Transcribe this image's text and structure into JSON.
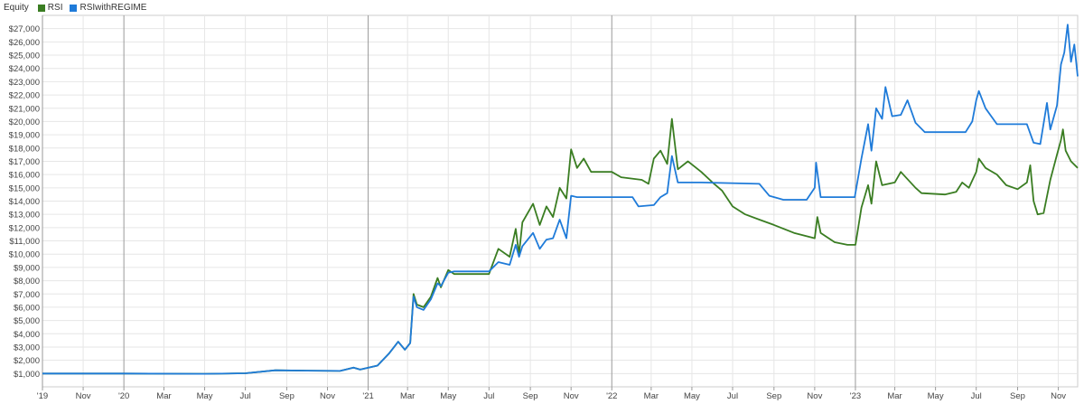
{
  "legend": {
    "title": "Equity"
  },
  "chart_data": {
    "type": "line",
    "title": "Equity",
    "xlabel": "",
    "ylabel": "",
    "ylim": [
      0,
      28000
    ],
    "grid": true,
    "legend_position": "top-left",
    "y_ticks": [
      1000,
      2000,
      3000,
      4000,
      5000,
      6000,
      7000,
      8000,
      9000,
      10000,
      11000,
      12000,
      13000,
      14000,
      15000,
      16000,
      17000,
      18000,
      19000,
      20000,
      21000,
      22000,
      23000,
      24000,
      25000,
      26000,
      27000
    ],
    "y_tick_labels": [
      "$1,000",
      "$2,000",
      "$3,000",
      "$4,000",
      "$5,000",
      "$6,000",
      "$7,000",
      "$8,000",
      "$9,000",
      "$10,000",
      "$11,000",
      "$12,000",
      "$13,000",
      "$14,000",
      "$15,000",
      "$16,000",
      "$17,000",
      "$18,000",
      "$19,000",
      "$20,000",
      "$21,000",
      "$22,000",
      "$23,000",
      "$24,000",
      "$25,000",
      "$26,000",
      "$27,000"
    ],
    "x_range": [
      "2019-09-01",
      "2023-11-30"
    ],
    "x_ticks": [
      {
        "date": "2019-09-01",
        "label": "'19",
        "major": true
      },
      {
        "date": "2019-11-01",
        "label": "Nov",
        "major": false
      },
      {
        "date": "2020-01-01",
        "label": "'20",
        "major": true
      },
      {
        "date": "2020-03-01",
        "label": "Mar",
        "major": false
      },
      {
        "date": "2020-05-01",
        "label": "May",
        "major": false
      },
      {
        "date": "2020-07-01",
        "label": "Jul",
        "major": false
      },
      {
        "date": "2020-09-01",
        "label": "Sep",
        "major": false
      },
      {
        "date": "2020-11-01",
        "label": "Nov",
        "major": false
      },
      {
        "date": "2021-01-01",
        "label": "'21",
        "major": true
      },
      {
        "date": "2021-03-01",
        "label": "Mar",
        "major": false
      },
      {
        "date": "2021-05-01",
        "label": "May",
        "major": false
      },
      {
        "date": "2021-07-01",
        "label": "Jul",
        "major": false
      },
      {
        "date": "2021-09-01",
        "label": "Sep",
        "major": false
      },
      {
        "date": "2021-11-01",
        "label": "Nov",
        "major": false
      },
      {
        "date": "2022-01-01",
        "label": "'22",
        "major": true
      },
      {
        "date": "2022-03-01",
        "label": "Mar",
        "major": false
      },
      {
        "date": "2022-05-01",
        "label": "May",
        "major": false
      },
      {
        "date": "2022-07-01",
        "label": "Jul",
        "major": false
      },
      {
        "date": "2022-09-01",
        "label": "Sep",
        "major": false
      },
      {
        "date": "2022-11-01",
        "label": "Nov",
        "major": false
      },
      {
        "date": "2023-01-01",
        "label": "'23",
        "major": true
      },
      {
        "date": "2023-03-01",
        "label": "Mar",
        "major": false
      },
      {
        "date": "2023-05-01",
        "label": "May",
        "major": false
      },
      {
        "date": "2023-07-01",
        "label": "Jul",
        "major": false
      },
      {
        "date": "2023-09-01",
        "label": "Sep",
        "major": false
      },
      {
        "date": "2023-11-01",
        "label": "Nov",
        "major": false
      }
    ],
    "series": [
      {
        "name": "RSI",
        "color": "#3a7d22",
        "points": [
          [
            "2019-09-01",
            1000
          ],
          [
            "2020-01-01",
            1000
          ],
          [
            "2020-05-01",
            980
          ],
          [
            "2020-07-01",
            1020
          ],
          [
            "2020-08-15",
            1250
          ],
          [
            "2020-10-01",
            1220
          ],
          [
            "2020-11-20",
            1200
          ],
          [
            "2020-12-10",
            1450
          ],
          [
            "2020-12-20",
            1300
          ],
          [
            "2021-01-15",
            1600
          ],
          [
            "2021-02-01",
            2500
          ],
          [
            "2021-02-15",
            3400
          ],
          [
            "2021-02-25",
            2800
          ],
          [
            "2021-03-05",
            3300
          ],
          [
            "2021-03-10",
            7000
          ],
          [
            "2021-03-15",
            6200
          ],
          [
            "2021-03-25",
            6000
          ],
          [
            "2021-04-05",
            6800
          ],
          [
            "2021-04-15",
            8200
          ],
          [
            "2021-04-20",
            7500
          ],
          [
            "2021-05-01",
            8800
          ],
          [
            "2021-05-10",
            8500
          ],
          [
            "2021-07-01",
            8500
          ],
          [
            "2021-07-15",
            10400
          ],
          [
            "2021-08-01",
            9800
          ],
          [
            "2021-08-10",
            11900
          ],
          [
            "2021-08-15",
            10000
          ],
          [
            "2021-08-20",
            12400
          ],
          [
            "2021-09-05",
            13800
          ],
          [
            "2021-09-15",
            12200
          ],
          [
            "2021-09-25",
            13600
          ],
          [
            "2021-10-05",
            12800
          ],
          [
            "2021-10-15",
            15000
          ],
          [
            "2021-10-25",
            14200
          ],
          [
            "2021-11-01",
            17900
          ],
          [
            "2021-11-10",
            16500
          ],
          [
            "2021-11-20",
            17200
          ],
          [
            "2021-12-01",
            16200
          ],
          [
            "2022-01-01",
            16200
          ],
          [
            "2022-01-15",
            15800
          ],
          [
            "2022-02-15",
            15600
          ],
          [
            "2022-02-25",
            15300
          ],
          [
            "2022-03-05",
            17200
          ],
          [
            "2022-03-15",
            17800
          ],
          [
            "2022-03-25",
            16800
          ],
          [
            "2022-04-01",
            20200
          ],
          [
            "2022-04-10",
            16400
          ],
          [
            "2022-04-25",
            17000
          ],
          [
            "2022-05-15",
            16200
          ],
          [
            "2022-06-01",
            15400
          ],
          [
            "2022-06-15",
            14800
          ],
          [
            "2022-07-01",
            13600
          ],
          [
            "2022-07-20",
            13000
          ],
          [
            "2022-08-10",
            12600
          ],
          [
            "2022-09-01",
            12200
          ],
          [
            "2022-10-01",
            11600
          ],
          [
            "2022-11-01",
            11200
          ],
          [
            "2022-11-05",
            12800
          ],
          [
            "2022-11-10",
            11600
          ],
          [
            "2022-12-01",
            10900
          ],
          [
            "2022-12-20",
            10700
          ],
          [
            "2023-01-01",
            10700
          ],
          [
            "2023-01-10",
            13500
          ],
          [
            "2023-01-20",
            15200
          ],
          [
            "2023-01-25",
            13800
          ],
          [
            "2023-02-01",
            17000
          ],
          [
            "2023-02-10",
            15200
          ],
          [
            "2023-03-01",
            15400
          ],
          [
            "2023-03-10",
            16200
          ],
          [
            "2023-04-01",
            15000
          ],
          [
            "2023-04-10",
            14600
          ],
          [
            "2023-05-15",
            14500
          ],
          [
            "2023-06-01",
            14700
          ],
          [
            "2023-06-10",
            15400
          ],
          [
            "2023-06-20",
            15000
          ],
          [
            "2023-07-01",
            16200
          ],
          [
            "2023-07-05",
            17200
          ],
          [
            "2023-07-15",
            16500
          ],
          [
            "2023-08-01",
            16000
          ],
          [
            "2023-08-15",
            15200
          ],
          [
            "2023-09-01",
            14900
          ],
          [
            "2023-09-15",
            15400
          ],
          [
            "2023-09-20",
            16700
          ],
          [
            "2023-09-25",
            14000
          ],
          [
            "2023-10-01",
            13000
          ],
          [
            "2023-10-10",
            13100
          ],
          [
            "2023-10-20",
            15600
          ],
          [
            "2023-10-30",
            17500
          ],
          [
            "2023-11-05",
            18600
          ],
          [
            "2023-11-08",
            19400
          ],
          [
            "2023-11-12",
            17800
          ],
          [
            "2023-11-20",
            17000
          ],
          [
            "2023-11-30",
            16500
          ]
        ]
      },
      {
        "name": "RSIwithREGIME",
        "color": "#1f7bd9",
        "points": [
          [
            "2019-09-01",
            1000
          ],
          [
            "2020-01-01",
            1000
          ],
          [
            "2020-05-01",
            980
          ],
          [
            "2020-07-01",
            1020
          ],
          [
            "2020-08-15",
            1250
          ],
          [
            "2020-10-01",
            1220
          ],
          [
            "2020-11-20",
            1200
          ],
          [
            "2020-12-10",
            1450
          ],
          [
            "2020-12-20",
            1300
          ],
          [
            "2021-01-15",
            1600
          ],
          [
            "2021-02-01",
            2500
          ],
          [
            "2021-02-15",
            3400
          ],
          [
            "2021-02-25",
            2800
          ],
          [
            "2021-03-05",
            3300
          ],
          [
            "2021-03-10",
            6800
          ],
          [
            "2021-03-15",
            6000
          ],
          [
            "2021-03-25",
            5800
          ],
          [
            "2021-04-05",
            6600
          ],
          [
            "2021-04-15",
            7800
          ],
          [
            "2021-04-20",
            7600
          ],
          [
            "2021-05-01",
            8600
          ],
          [
            "2021-05-10",
            8700
          ],
          [
            "2021-07-01",
            8700
          ],
          [
            "2021-07-15",
            9400
          ],
          [
            "2021-08-01",
            9200
          ],
          [
            "2021-08-10",
            10700
          ],
          [
            "2021-08-15",
            9800
          ],
          [
            "2021-08-20",
            10600
          ],
          [
            "2021-09-05",
            11600
          ],
          [
            "2021-09-15",
            10400
          ],
          [
            "2021-09-25",
            11100
          ],
          [
            "2021-10-05",
            11200
          ],
          [
            "2021-10-15",
            12600
          ],
          [
            "2021-10-25",
            11200
          ],
          [
            "2021-11-01",
            14400
          ],
          [
            "2021-11-10",
            14300
          ],
          [
            "2022-02-01",
            14300
          ],
          [
            "2022-02-10",
            13600
          ],
          [
            "2022-03-05",
            13700
          ],
          [
            "2022-03-15",
            14300
          ],
          [
            "2022-03-25",
            14600
          ],
          [
            "2022-04-01",
            17400
          ],
          [
            "2022-04-10",
            15400
          ],
          [
            "2022-05-15",
            15400
          ],
          [
            "2022-08-10",
            15300
          ],
          [
            "2022-08-25",
            14400
          ],
          [
            "2022-09-15",
            14100
          ],
          [
            "2022-10-20",
            14100
          ],
          [
            "2022-11-01",
            15000
          ],
          [
            "2022-11-03",
            16900
          ],
          [
            "2022-11-10",
            14300
          ],
          [
            "2022-12-31",
            14300
          ],
          [
            "2023-01-10",
            17200
          ],
          [
            "2023-01-20",
            19800
          ],
          [
            "2023-01-25",
            17800
          ],
          [
            "2023-02-01",
            21000
          ],
          [
            "2023-02-10",
            20200
          ],
          [
            "2023-02-15",
            22600
          ],
          [
            "2023-02-25",
            20400
          ],
          [
            "2023-03-10",
            20500
          ],
          [
            "2023-03-20",
            21600
          ],
          [
            "2023-04-01",
            19900
          ],
          [
            "2023-04-15",
            19200
          ],
          [
            "2023-06-15",
            19200
          ],
          [
            "2023-06-25",
            20000
          ],
          [
            "2023-07-01",
            21600
          ],
          [
            "2023-07-05",
            22300
          ],
          [
            "2023-07-15",
            21000
          ],
          [
            "2023-08-01",
            19800
          ],
          [
            "2023-09-15",
            19800
          ],
          [
            "2023-09-25",
            18400
          ],
          [
            "2023-10-05",
            18300
          ],
          [
            "2023-10-15",
            21400
          ],
          [
            "2023-10-20",
            19400
          ],
          [
            "2023-10-30",
            21200
          ],
          [
            "2023-11-05",
            24300
          ],
          [
            "2023-11-10",
            25200
          ],
          [
            "2023-11-15",
            27300
          ],
          [
            "2023-11-20",
            24500
          ],
          [
            "2023-11-25",
            25800
          ],
          [
            "2023-11-30",
            23400
          ]
        ]
      }
    ]
  }
}
